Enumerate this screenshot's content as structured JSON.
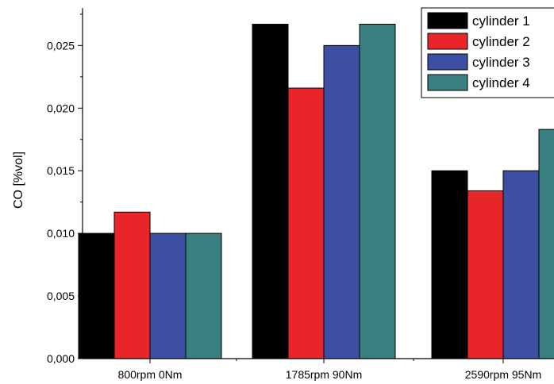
{
  "chart_data": {
    "type": "bar",
    "title": "",
    "xlabel": "",
    "ylabel": "CO [%vol]",
    "ylim": [
      0,
      0.028
    ],
    "yticks": [
      "0,000",
      "0,005",
      "0,010",
      "0,015",
      "0,020",
      "0,025"
    ],
    "ytick_values": [
      0,
      0.005,
      0.01,
      0.015,
      0.02,
      0.025
    ],
    "categories": [
      "800rpm 0Nm",
      "1785rpm 90Nm",
      "2590rpm 95Nm"
    ],
    "series": [
      {
        "name": "cylinder 1",
        "color": "#000000",
        "values": [
          0.01,
          0.0267,
          0.015
        ]
      },
      {
        "name": "cylinder 2",
        "color": "#e8262a",
        "values": [
          0.0117,
          0.0216,
          0.0134
        ]
      },
      {
        "name": "cylinder 3",
        "color": "#3d4fa3",
        "values": [
          0.01,
          0.025,
          0.015
        ]
      },
      {
        "name": "cylinder 4",
        "color": "#3a8080",
        "values": [
          0.01,
          0.0267,
          0.0183
        ]
      }
    ],
    "legend_position": "top-right",
    "grid": false
  }
}
